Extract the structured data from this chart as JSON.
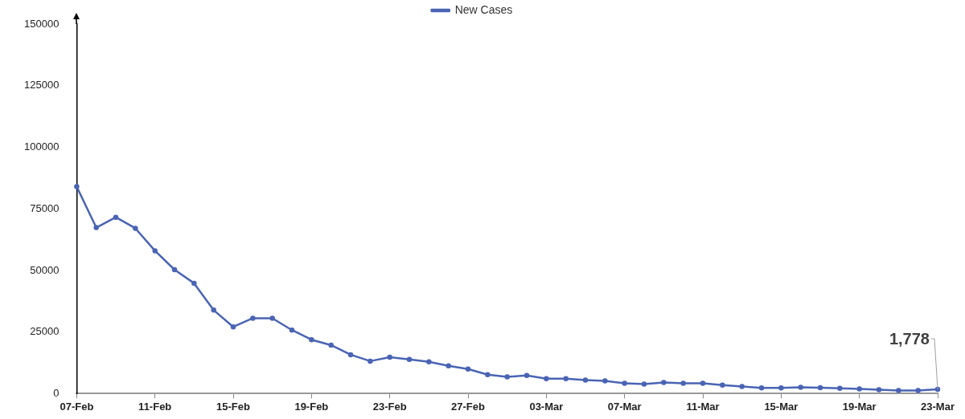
{
  "chart_data": {
    "type": "line",
    "categories": [
      "07-Feb",
      null,
      null,
      null,
      "11-Feb",
      null,
      null,
      null,
      "15-Feb",
      null,
      null,
      null,
      "19-Feb",
      null,
      null,
      null,
      "23-Feb",
      null,
      null,
      null,
      "27-Feb",
      null,
      null,
      null,
      "03-Mar",
      null,
      null,
      null,
      "07-Mar",
      null,
      null,
      null,
      "11-Mar",
      null,
      null,
      null,
      "15-Mar",
      null,
      null,
      null,
      "19-Mar",
      null,
      null,
      null,
      "23-Mar"
    ],
    "series": [
      {
        "name": "New Cases",
        "color": "#4a64b4",
        "values": [
          84000,
          67400,
          71600,
          67100,
          58000,
          50300,
          44800,
          33900,
          27100,
          30600,
          30600,
          25800,
          21900,
          19700,
          15800,
          13200,
          14800,
          13900,
          12900,
          11300,
          10000,
          7700,
          6800,
          7400,
          6100,
          6100,
          5500,
          5200,
          4200,
          3900,
          4500,
          4200,
          4200,
          3500,
          2900,
          2300,
          2300,
          2600,
          2400,
          2200,
          1900,
          1600,
          1300,
          1300,
          1778
        ],
        "value_labels": [
          null,
          null,
          null,
          null,
          null,
          null,
          null,
          null,
          null,
          null,
          null,
          null,
          null,
          null,
          null,
          null,
          null,
          null,
          null,
          null,
          null,
          null,
          null,
          null,
          null,
          null,
          null,
          null,
          null,
          null,
          null,
          null,
          null,
          null,
          null,
          null,
          null,
          null,
          null,
          null,
          null,
          null,
          null,
          null,
          "1,778"
        ]
      }
    ],
    "ylim": [
      0,
      150000
    ],
    "yticks": [
      0,
      25000,
      50000,
      75000,
      100000,
      125000,
      150000
    ],
    "grid": false,
    "legend": "top",
    "marker": "circle",
    "line_style": "solid"
  }
}
